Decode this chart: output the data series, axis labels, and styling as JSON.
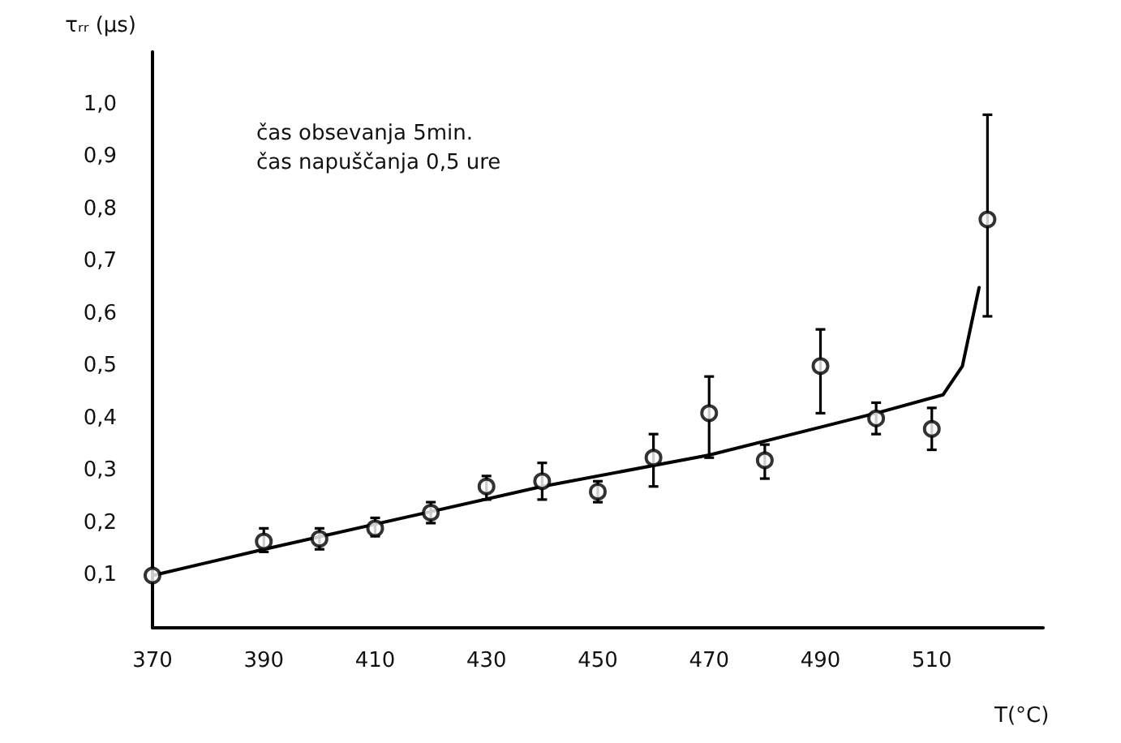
{
  "chart_data": {
    "type": "scatter",
    "xlabel": "T(°C)",
    "ylabel": "τᵣᵣ (μs)",
    "annotations": [
      "čas obsevanja 5min.",
      "čas napuščanja 0,5 ure"
    ],
    "xlim": [
      370,
      530
    ],
    "xticks": [
      370,
      390,
      410,
      430,
      450,
      470,
      490,
      510
    ],
    "ylim": [
      0,
      1.1
    ],
    "yticks": [
      {
        "value": 0.1,
        "label": "0,1"
      },
      {
        "value": 0.2,
        "label": "0,2"
      },
      {
        "value": 0.3,
        "label": "0,3"
      },
      {
        "value": 0.4,
        "label": "0,4"
      },
      {
        "value": 0.5,
        "label": "0,5"
      },
      {
        "value": 0.6,
        "label": "0,6"
      },
      {
        "value": 0.7,
        "label": "0,7"
      },
      {
        "value": 0.8,
        "label": "0,8"
      },
      {
        "value": 0.9,
        "label": "0,9"
      },
      {
        "value": 1.0,
        "label": "1,0"
      }
    ],
    "grid": false,
    "series": [
      {
        "type": "scatter",
        "color": "#000000",
        "marker": "circle",
        "x": [
          370,
          390,
          400,
          410,
          420,
          430,
          440,
          450,
          460,
          470,
          480,
          490,
          500,
          510,
          520
        ],
        "values": [
          0.1,
          0.165,
          0.17,
          0.19,
          0.22,
          0.27,
          0.28,
          0.26,
          0.325,
          0.41,
          0.32,
          0.5,
          0.4,
          0.38,
          0.78
        ],
        "errors": [
          null,
          [
            0.145,
            0.19
          ],
          [
            0.15,
            0.19
          ],
          [
            0.175,
            0.21
          ],
          [
            0.2,
            0.24
          ],
          [
            0.245,
            0.29
          ],
          [
            0.245,
            0.315
          ],
          [
            0.24,
            0.28
          ],
          [
            0.27,
            0.37
          ],
          [
            0.325,
            0.48
          ],
          [
            0.285,
            0.35
          ],
          [
            0.41,
            0.57
          ],
          [
            0.37,
            0.43
          ],
          [
            0.34,
            0.42
          ],
          [
            0.595,
            0.98
          ]
        ]
      },
      {
        "type": "line",
        "color": "#000000",
        "marker": "none",
        "line_style": "solid",
        "x": [
          370,
          390,
          440,
          470,
          500,
          512,
          515.5,
          518.5
        ],
        "values": [
          0.1,
          0.15,
          0.27,
          0.33,
          0.41,
          0.445,
          0.5,
          0.65
        ]
      }
    ]
  }
}
